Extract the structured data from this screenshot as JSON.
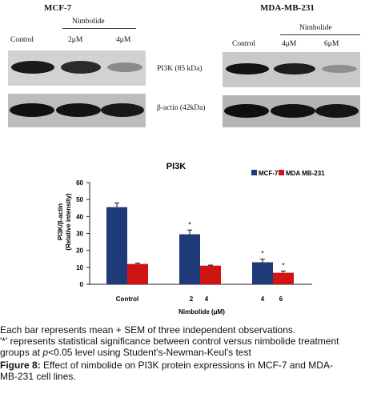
{
  "blots": {
    "left": {
      "cell_line": "MCF-7",
      "treatment_label": "Nimbolide",
      "lanes": [
        "Control",
        "2μM",
        "4μM"
      ],
      "pi3k_label": "PI3K (85 kDa)",
      "actin_label": "β-actin (42kDa)"
    },
    "right": {
      "cell_line": "MDA-MB-231",
      "treatment_label": "Nimbolide",
      "lanes": [
        "Control",
        "4μM",
        "6μM"
      ]
    }
  },
  "chart_data": {
    "type": "bar",
    "title": "PI3K",
    "xlabel": "Nimbolide (μM)",
    "ylabel": "PI3K/β-actin (Relative intensity)",
    "ylim": [
      0,
      60
    ],
    "yticks": [
      0,
      10,
      20,
      30,
      40,
      50,
      60
    ],
    "group_labels": [
      "Control",
      "2",
      "4",
      "4",
      "6"
    ],
    "legend_position": "top-right",
    "series": [
      {
        "name": "MCF-7",
        "color": "#1f3a78",
        "values": [
          45.5,
          29.5,
          13
        ],
        "errors": [
          2.5,
          2.5,
          1.8
        ],
        "significant": [
          false,
          true,
          true
        ]
      },
      {
        "name": "MDA MB-231",
        "color": "#d01414",
        "values": [
          12,
          11,
          6.8
        ],
        "errors": [
          0.5,
          0.3,
          1.0
        ],
        "significant": [
          false,
          false,
          true
        ]
      }
    ],
    "significance_marker": "*"
  },
  "caption": {
    "line1": "Each bar represents mean + SEM of three independent observations.",
    "line2a": "'*' represents statistical significance between control versus nimbolide treatment",
    "line3a": "groups at ",
    "line3p": "p",
    "line3b": "<0.05 level using Student's-Newman-Keul's test",
    "fig_label": "Figure 8:",
    "fig_text1": " Effect of nimbolide on PI3K protein expressions in MCF-7 and MDA-",
    "fig_text2": "MB-231 cell lines."
  }
}
